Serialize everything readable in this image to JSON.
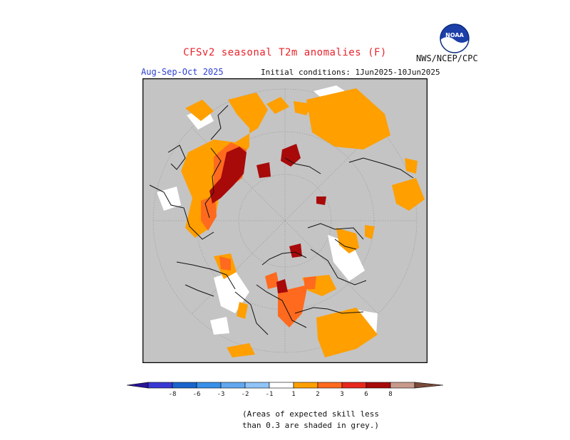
{
  "header": {
    "title": "CFSv2 seasonal T2m anomalies (F)",
    "period": "Aug-Sep-Oct 2025",
    "initial_conditions": "Initial conditions: 1Jun2025-10Jun2025",
    "agency": "NWS/NCEP/CPC",
    "logo_text": "NOAA"
  },
  "colors": {
    "no_skill_grey": "#c4c4c4",
    "ocean_white": "#ffffff",
    "coast": "#111111",
    "warm_1": "#ff9f00",
    "warm_2": "#ff6a1e",
    "warm_3": "#e8281c",
    "warm_6": "#a80a0a",
    "warm_8": "#c89a8c",
    "warm_gt8": "#7a4a3a",
    "cold_gt8": "#2a1498",
    "cold_8": "#3838d4",
    "cold_6": "#1a64cc",
    "cold_3": "#3890e8",
    "cold_2": "#62a8f0",
    "cold_1": "#90c4f8"
  },
  "colorbar": {
    "ticks": [
      "-8",
      "-6",
      "-3",
      "-2",
      "-1",
      "1",
      "2",
      "3",
      "6",
      "8"
    ],
    "bins": [
      {
        "color": "#3838d4"
      },
      {
        "color": "#1a64cc"
      },
      {
        "color": "#3890e8"
      },
      {
        "color": "#62a8f0"
      },
      {
        "color": "#90c4f8"
      },
      {
        "color": "#ffffff"
      },
      {
        "color": "#ff9f00"
      },
      {
        "color": "#ff6a1e"
      },
      {
        "color": "#e8281c"
      },
      {
        "color": "#a80a0a"
      },
      {
        "color": "#c89a8c"
      }
    ]
  },
  "note": {
    "line1": "(Areas of expected skill less",
    "line2": "than 0.3 are shaded in grey.)"
  }
}
